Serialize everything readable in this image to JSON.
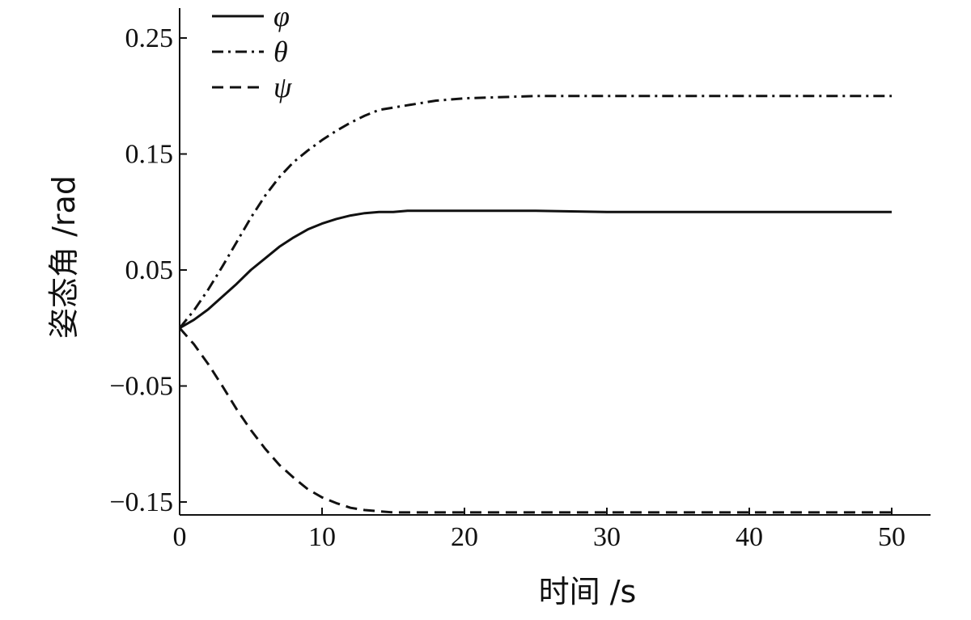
{
  "chart_data": {
    "type": "line",
    "xlabel": "时间 /s",
    "ylabel": "姿态角 /rad",
    "xlim": [
      0,
      52
    ],
    "ylim": [
      -0.165,
      0.275
    ],
    "x_ticks": [
      {
        "value": 0,
        "label": "0"
      },
      {
        "value": 10,
        "label": "10"
      },
      {
        "value": 20,
        "label": "20"
      },
      {
        "value": 30,
        "label": "30"
      },
      {
        "value": 40,
        "label": "40"
      },
      {
        "value": 50,
        "label": "50"
      }
    ],
    "y_ticks": [
      {
        "value": 0.25,
        "label": "0.25"
      },
      {
        "value": 0.15,
        "label": "0.15"
      },
      {
        "value": 0.05,
        "label": "0.05"
      },
      {
        "value": -0.05,
        "label": "−0.05"
      },
      {
        "value": -0.15,
        "label": "−0.15"
      }
    ],
    "grid": false,
    "legend_position": "top-left",
    "series": [
      {
        "name": "φ",
        "line_style": "solid",
        "x": [
          0,
          1,
          2,
          3,
          4,
          5,
          6,
          7,
          8,
          9,
          10,
          11,
          12,
          13,
          14,
          15,
          16,
          18,
          20,
          25,
          30,
          35,
          40,
          45,
          50
        ],
        "y": [
          0.0,
          0.007,
          0.016,
          0.027,
          0.038,
          0.05,
          0.06,
          0.07,
          0.078,
          0.085,
          0.09,
          0.094,
          0.097,
          0.099,
          0.1,
          0.1,
          0.101,
          0.101,
          0.101,
          0.101,
          0.1,
          0.1,
          0.1,
          0.1,
          0.1
        ]
      },
      {
        "name": "θ",
        "line_style": "dashdot",
        "x": [
          0,
          1,
          2,
          3,
          4,
          5,
          6,
          7,
          8,
          9,
          10,
          11,
          12,
          13,
          14,
          15,
          16,
          18,
          20,
          25,
          30,
          35,
          40,
          45,
          50
        ],
        "y": [
          0.0,
          0.015,
          0.033,
          0.053,
          0.074,
          0.095,
          0.114,
          0.13,
          0.143,
          0.153,
          0.162,
          0.17,
          0.177,
          0.183,
          0.188,
          0.19,
          0.192,
          0.196,
          0.198,
          0.2,
          0.2,
          0.2,
          0.2,
          0.2,
          0.2
        ]
      },
      {
        "name": "ψ",
        "line_style": "dashed",
        "x": [
          0,
          1,
          2,
          3,
          4,
          5,
          6,
          7,
          8,
          9,
          10,
          11,
          12,
          13,
          14,
          15,
          16,
          18,
          20,
          25,
          30,
          35,
          40,
          45,
          50
        ],
        "y": [
          0.0,
          -0.014,
          -0.031,
          -0.05,
          -0.07,
          -0.088,
          -0.104,
          -0.118,
          -0.129,
          -0.139,
          -0.146,
          -0.151,
          -0.155,
          -0.157,
          -0.158,
          -0.159,
          -0.159,
          -0.159,
          -0.159,
          -0.159,
          -0.159,
          -0.159,
          -0.159,
          -0.159,
          -0.159
        ]
      }
    ],
    "colors": {
      "lines": "#111111",
      "axis": "#111111",
      "background": "#ffffff"
    }
  }
}
